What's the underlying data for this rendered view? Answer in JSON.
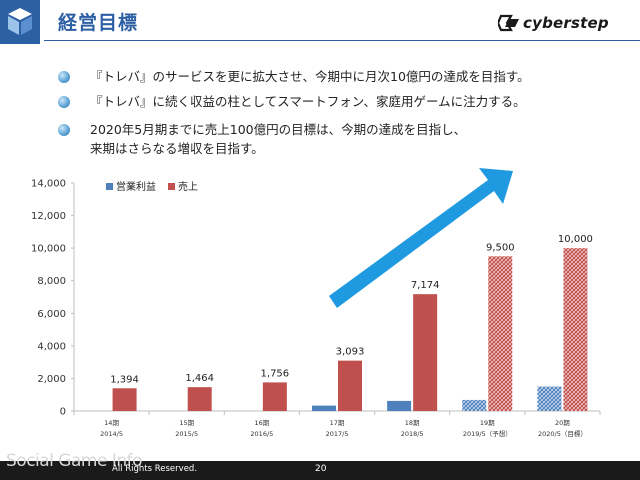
{
  "header": {
    "title": "経営目標",
    "brand": "cyberstep",
    "logo_icon": "cube-logo-icon",
    "brand_icon": "cyberstep-logo-icon"
  },
  "bullets": [
    {
      "line1": "『トレバ』のサービスを更に拡大させ、今期中に月次10億円の達成を目指す。"
    },
    {
      "line1": "『トレバ』に続く収益の柱としてスマートフォン、家庭用ゲームに注力する。"
    },
    {
      "line1": "2020年5月期までに売上100億円の目標は、今期の達成を目指し、",
      "line2": "来期はさらなる増収を目指す。"
    }
  ],
  "chart_data": {
    "type": "bar",
    "categories": [
      {
        "period": "14期",
        "date": "2014/5"
      },
      {
        "period": "15期",
        "date": "2015/5"
      },
      {
        "period": "16期",
        "date": "2016/5"
      },
      {
        "period": "17期",
        "date": "2017/5"
      },
      {
        "period": "18期",
        "date": "2018/5"
      },
      {
        "period": "19期",
        "date": "2019/5（予想）"
      },
      {
        "period": "20期",
        "date": "2020/5（目標）"
      }
    ],
    "series": [
      {
        "name": "営業利益",
        "color": "#4f81bd",
        "values": [
          0,
          0,
          0,
          330,
          620,
          680,
          1500
        ],
        "labels": [
          "",
          "",
          "",
          "",
          "",
          "",
          ""
        ]
      },
      {
        "name": "売上",
        "color": "#c0504d",
        "values": [
          1394,
          1464,
          1756,
          3093,
          7174,
          9500,
          10000
        ],
        "labels": [
          "1,394",
          "1,464",
          "1,756",
          "3,093",
          "7,174",
          "9,500",
          "10,000"
        ]
      }
    ],
    "forecast_from_index": 5,
    "ylim": [
      0,
      14000
    ],
    "yticks": [
      0,
      2000,
      4000,
      6000,
      8000,
      10000,
      12000,
      14000
    ],
    "ytick_labels": [
      "0",
      "2,000",
      "4,000",
      "6,000",
      "8,000",
      "10,000",
      "12,000",
      "14,000"
    ],
    "legend_position": "top-left",
    "grid": false,
    "annotation": "up-trend-arrow"
  },
  "footer": {
    "watermark": "Social Game Info",
    "copyright": "All Rights Reserved.",
    "page": "20"
  }
}
